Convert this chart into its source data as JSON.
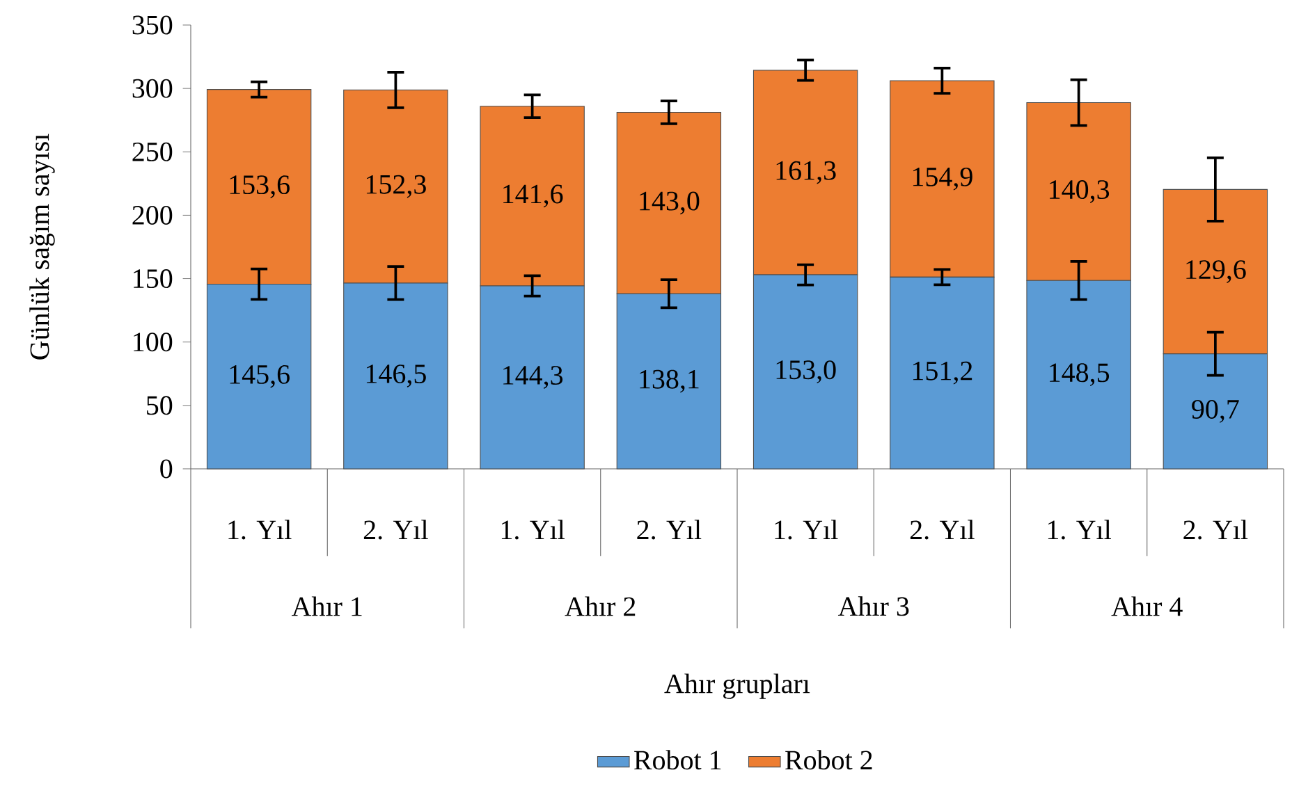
{
  "chart_data": {
    "type": "bar",
    "stacked": true,
    "categories": [
      "1. Yıl",
      "2. Yıl",
      "1. Yıl",
      "2. Yıl",
      "1. Yıl",
      "2. Yıl",
      "1. Yıl",
      "2. Yıl"
    ],
    "annotations": [
      "Ahır 1",
      "Ahır 2",
      "Ahır 3",
      "Ahır 4"
    ],
    "xlabel": "Ahır grupları",
    "ylabel": "Günlük sağım sayısı",
    "ylim": [
      0,
      350
    ],
    "yticks": [
      0,
      50,
      100,
      150,
      200,
      250,
      300,
      350
    ],
    "legend": "bottom",
    "series": [
      {
        "name": "Robot 1",
        "color": "#5b9bd5",
        "values": [
          145.6,
          146.5,
          144.3,
          138.1,
          153.0,
          151.2,
          148.5,
          90.7
        ],
        "value_labels": [
          "145,6",
          "146,5",
          "144,3",
          "138,1",
          "153,0",
          "151,2",
          "148,5",
          "90,7"
        ],
        "errors": [
          12,
          13,
          8,
          11,
          8,
          6,
          15,
          17
        ]
      },
      {
        "name": "Robot 2",
        "color": "#ed7d31",
        "values": [
          153.6,
          152.3,
          141.6,
          143.0,
          161.3,
          154.9,
          140.3,
          129.6
        ],
        "value_labels": [
          "153,6",
          "152,3",
          "141,6",
          "143,0",
          "161,3",
          "154,9",
          "140,3",
          "129,6"
        ],
        "errors": [
          6,
          14,
          9,
          9,
          8,
          10,
          18,
          25
        ]
      }
    ]
  }
}
